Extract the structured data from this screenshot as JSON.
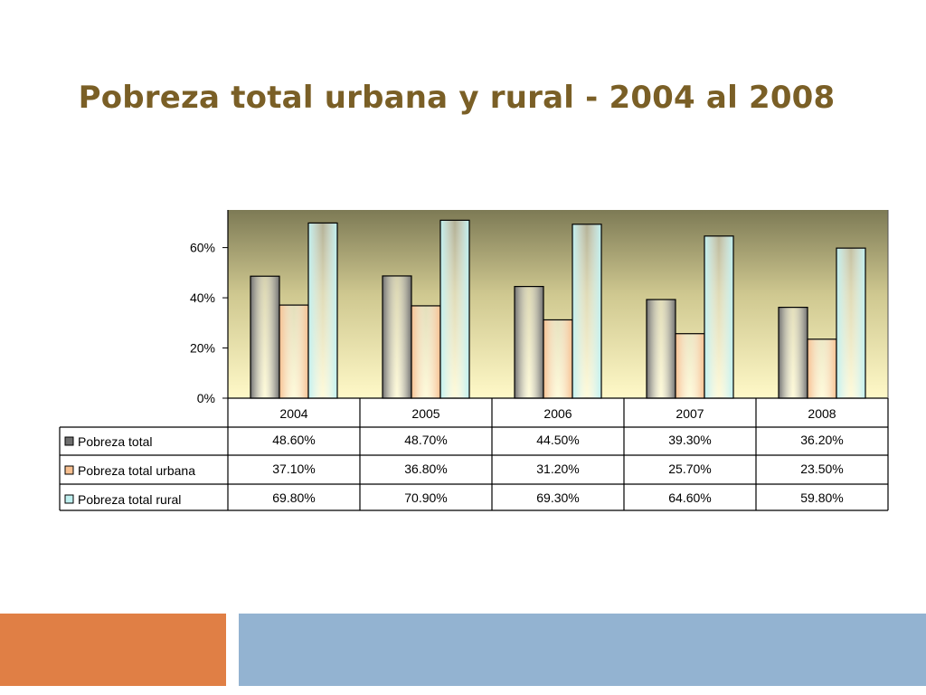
{
  "slide": {
    "title": "Pobreza total urbana y rural - 2004 al 2008"
  },
  "colors": {
    "title": "#7a5f26",
    "accent_orange": "#e07f45",
    "accent_blue": "#93b3d1"
  },
  "chart_data": {
    "type": "bar",
    "title": "",
    "categories": [
      "2004",
      "2005",
      "2006",
      "2007",
      "2008"
    ],
    "series": [
      {
        "name": "Pobreza total",
        "values": [
          48.6,
          48.7,
          44.5,
          39.3,
          36.2
        ],
        "labels": [
          "48.60%",
          "48.70%",
          "44.50%",
          "39.30%",
          "36.20%"
        ],
        "color": "#6e6e6e"
      },
      {
        "name": "Pobreza total urbana",
        "values": [
          37.1,
          36.8,
          31.2,
          25.7,
          23.5
        ],
        "labels": [
          "37.10%",
          "36.80%",
          "31.20%",
          "25.70%",
          "23.50%"
        ],
        "color": "#f7bf8f"
      },
      {
        "name": "Pobreza total rural",
        "values": [
          69.8,
          70.9,
          69.3,
          64.6,
          59.8
        ],
        "labels": [
          "69.80%",
          "70.90%",
          "69.30%",
          "64.60%",
          "59.80%"
        ],
        "color": "#bff0f0"
      }
    ],
    "yticks": [
      "0%",
      "20%",
      "40%",
      "60%"
    ],
    "ytick_values": [
      0,
      20,
      40,
      60
    ],
    "ylim": [
      0,
      75
    ],
    "grid": false,
    "legend": "data-table-left",
    "background": "gradient olive to light yellow"
  }
}
